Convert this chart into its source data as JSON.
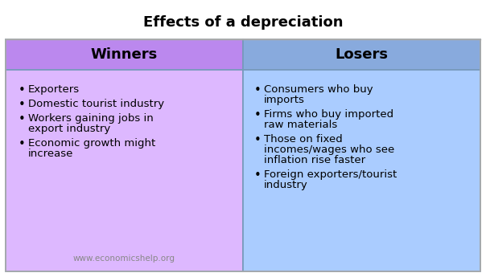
{
  "title": "Effects of a depreciation",
  "title_fontsize": 13,
  "title_fontweight": "bold",
  "title_color": "#000000",
  "background_color": "#ffffff",
  "winners_header": "Winners",
  "losers_header": "Losers",
  "header_fontsize": 13,
  "header_fontweight": "bold",
  "header_color": "#000000",
  "winners_bg": "#ddb8ff",
  "losers_bg": "#aaccff",
  "winners_header_bg": "#bb88ee",
  "losers_header_bg": "#88aadd",
  "body_fontsize": 9.5,
  "body_color": "#000000",
  "winners_items": [
    "Exporters",
    "Domestic tourist industry",
    "Workers gaining jobs in\nexport industry",
    "Economic growth might\nincrease"
  ],
  "losers_items": [
    "Consumers who buy\nimports",
    "Firms who buy imported\nraw materials",
    "Those on fixed\nincomes/wages who see\ninflation rise faster",
    "Foreign exporters/tourist\nindustry"
  ],
  "watermark": "www.economicshelp.org",
  "watermark_fontsize": 7.5,
  "watermark_color": "#888888",
  "border_color": "#7799bb",
  "divider_color": "#7799bb",
  "outer_border_color": "#aaaaaa"
}
